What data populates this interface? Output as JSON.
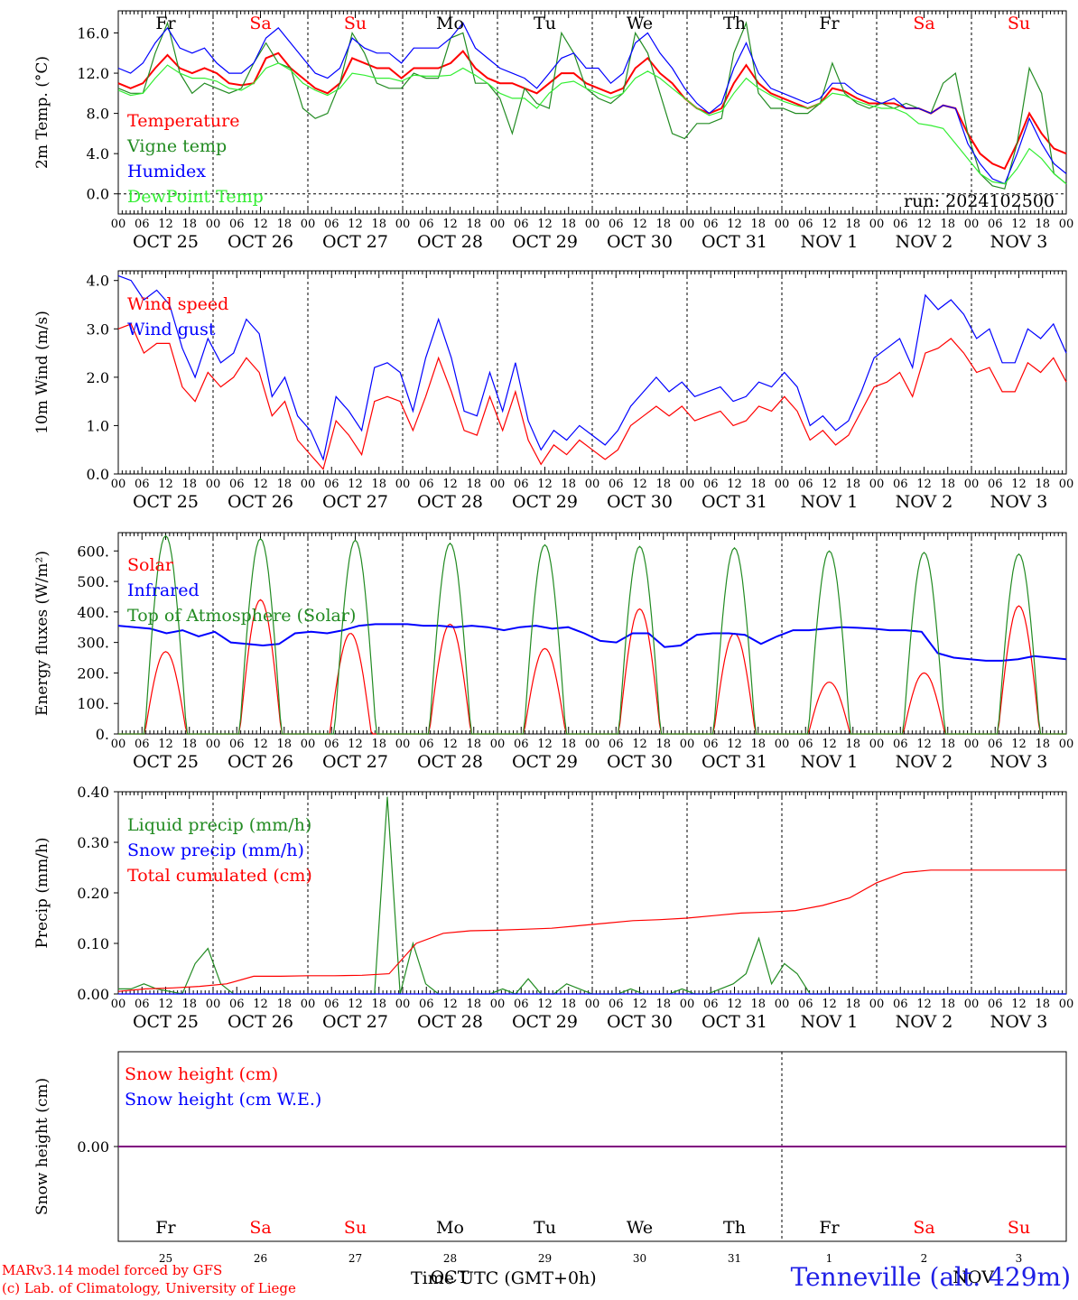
{
  "days": [
    "OCT 25",
    "OCT 26",
    "OCT 27",
    "OCT 28",
    "OCT 29",
    "OCT 30",
    "OCT 31",
    "NOV  1",
    "NOV  2",
    "NOV  3"
  ],
  "hour_labels": [
    "00",
    "06",
    "12",
    "18"
  ],
  "weekdays": [
    "Fr",
    "Sa",
    "Su",
    "Mo",
    "Tu",
    "We",
    "Th",
    "Fr",
    "Sa",
    "Su"
  ],
  "weekend_flags": [
    false,
    true,
    true,
    false,
    false,
    false,
    false,
    false,
    true,
    true
  ],
  "day_numbers": [
    "25",
    "26",
    "27",
    "28",
    "29",
    "30",
    "31",
    "1",
    "2",
    "3"
  ],
  "colors": {
    "red": "#ff0000",
    "green": "#228b22",
    "blue": "#0000ff",
    "lightgreen": "#33ee33",
    "purple": "#800080"
  },
  "footer": {
    "model": "MARv3.14 model forced by GFS",
    "lab": "(c) Lab. of Climatology, University of Liege",
    "xlabel": "Time UTC (GMT+0h)",
    "month_overlay": "OCT",
    "month_overlay2": "NOV",
    "station": "Tenneville (alt. 429m)"
  },
  "chart_data": [
    {
      "type": "line",
      "ylabel": "2m Temp. (°C)",
      "ylim": [
        -2,
        18.2
      ],
      "yticks": [
        "0.0",
        "4.0",
        "8.0",
        "12.0",
        "16.0"
      ],
      "ytick_values": [
        0,
        4,
        8,
        12,
        16
      ],
      "annotation": "run: 2024102500",
      "x_unit": "hours from 00 UTC OCT 25, 3-hourly",
      "series": [
        {
          "name": "Temperature",
          "color": "red",
          "values": [
            11,
            10.5,
            11,
            12.5,
            13.8,
            12.5,
            12,
            12.5,
            12,
            11,
            10.8,
            11,
            13.5,
            14,
            12.5,
            11.5,
            10.5,
            10,
            11,
            13.5,
            13,
            12.5,
            12.5,
            11.5,
            12.5,
            12.5,
            12.5,
            13,
            14.2,
            12.5,
            11.5,
            11,
            11,
            10.5,
            10,
            11,
            12,
            12,
            11,
            10.5,
            10,
            10.5,
            12.5,
            13.5,
            12,
            11,
            9.5,
            8.5,
            8,
            8.5,
            11,
            12.8,
            11,
            10,
            9.5,
            9,
            8.5,
            9,
            10.5,
            10.2,
            9.5,
            9,
            9,
            9,
            8.5,
            8.5,
            8,
            8.8,
            8.5,
            6,
            4,
            3,
            2.5,
            5,
            8,
            6,
            4.5,
            4
          ]
        },
        {
          "name": "Vigne temp",
          "color": "green",
          "values": [
            10.5,
            10,
            10,
            14,
            17,
            12,
            10,
            11,
            10.5,
            10,
            10.5,
            13,
            15,
            13,
            12.5,
            8.5,
            7.5,
            8,
            11,
            16,
            14,
            11,
            10.5,
            10.5,
            12,
            11.5,
            11.5,
            15.5,
            16,
            11,
            11,
            9.5,
            6,
            10.5,
            9,
            8.5,
            16,
            14,
            10.5,
            9.5,
            9,
            10,
            16,
            14,
            10,
            6,
            5.5,
            7,
            7,
            7.5,
            14,
            17,
            10,
            8.5,
            8.5,
            8,
            8,
            9,
            13,
            10,
            9,
            8.5,
            9,
            8.5,
            9,
            8.5,
            8,
            11,
            12,
            6,
            2,
            0.8,
            0.5,
            5,
            12.5,
            10,
            2,
            1
          ]
        },
        {
          "name": "Humidex",
          "color": "blue",
          "values": [
            12.5,
            12,
            13,
            15,
            16.5,
            14.5,
            14,
            14.5,
            13,
            12,
            12,
            13,
            15.5,
            16.5,
            15,
            13.5,
            12,
            11.5,
            12.5,
            15.5,
            14.5,
            14,
            14,
            13,
            14.5,
            14.5,
            14.5,
            15.5,
            17,
            14.5,
            13.5,
            12.5,
            12,
            11.5,
            10.5,
            12,
            13.5,
            14,
            12.5,
            12.5,
            11,
            12,
            15,
            16,
            14,
            12.5,
            10.5,
            9,
            8,
            9,
            12.5,
            15,
            12,
            10.5,
            10,
            9.5,
            9,
            9.5,
            11,
            11,
            10,
            9.5,
            9,
            9.5,
            8.5,
            8.5,
            8,
            8.8,
            8.5,
            5,
            3,
            1.5,
            1,
            4,
            7.5,
            5,
            3,
            2
          ]
        },
        {
          "name": "DewPoint Temp",
          "color": "lightgreen",
          "values": [
            10.3,
            9.8,
            10,
            11.5,
            12.8,
            12,
            11.5,
            11.5,
            11.2,
            10.5,
            10.3,
            11,
            12.5,
            13,
            12.3,
            11,
            10.3,
            9.8,
            10.5,
            12,
            11.8,
            11.5,
            11.5,
            11.2,
            11.8,
            11.7,
            11.7,
            11.8,
            12.5,
            11.8,
            11,
            10,
            9.5,
            9.5,
            8.5,
            10,
            11,
            11.2,
            10.5,
            10,
            9.5,
            10,
            11.5,
            12.2,
            11.5,
            10.5,
            9.5,
            8.5,
            7.8,
            8.2,
            10,
            11.5,
            10.5,
            9.8,
            9.2,
            8.8,
            8.5,
            9,
            10,
            9.8,
            9.2,
            8.8,
            8.5,
            8.5,
            8,
            7,
            6.8,
            6.5,
            5,
            3.5,
            2,
            1.2,
            1,
            2.5,
            4.5,
            3.5,
            2,
            1
          ]
        }
      ]
    },
    {
      "type": "line",
      "ylabel": "10m Wind (m/s)",
      "ylim": [
        0,
        4.2
      ],
      "yticks": [
        "0.0",
        "1.0",
        "2.0",
        "3.0",
        "4.0"
      ],
      "ytick_values": [
        0,
        1,
        2,
        3,
        4
      ],
      "series": [
        {
          "name": "Wind speed",
          "color": "red",
          "values": [
            3,
            3.1,
            2.5,
            2.7,
            2.7,
            1.8,
            1.5,
            2.1,
            1.8,
            2,
            2.4,
            2.1,
            1.2,
            1.5,
            0.7,
            0.4,
            0.1,
            1.1,
            0.8,
            0.4,
            1.5,
            1.6,
            1.5,
            0.9,
            1.6,
            2.4,
            1.7,
            0.9,
            0.8,
            1.6,
            0.9,
            1.7,
            0.7,
            0.2,
            0.6,
            0.4,
            0.7,
            0.5,
            0.3,
            0.5,
            1,
            1.2,
            1.4,
            1.2,
            1.4,
            1.1,
            1.2,
            1.3,
            1,
            1.1,
            1.4,
            1.3,
            1.6,
            1.3,
            0.7,
            0.9,
            0.6,
            0.8,
            1.3,
            1.8,
            1.9,
            2.1,
            1.6,
            2.5,
            2.6,
            2.8,
            2.5,
            2.1,
            2.2,
            1.7,
            1.7,
            2.3,
            2.1,
            2.4,
            1.9
          ]
        },
        {
          "name": "Wind gust",
          "color": "blue",
          "values": [
            4.1,
            4,
            3.6,
            3.8,
            3.5,
            2.6,
            2,
            2.8,
            2.3,
            2.5,
            3.2,
            2.9,
            1.6,
            2,
            1.2,
            0.9,
            0.3,
            1.6,
            1.3,
            0.9,
            2.2,
            2.3,
            2.1,
            1.3,
            2.4,
            3.2,
            2.4,
            1.3,
            1.2,
            2.1,
            1.3,
            2.3,
            1.1,
            0.5,
            0.9,
            0.7,
            1,
            0.8,
            0.6,
            0.9,
            1.4,
            1.7,
            2,
            1.7,
            1.9,
            1.6,
            1.7,
            1.8,
            1.5,
            1.6,
            1.9,
            1.8,
            2.1,
            1.8,
            1,
            1.2,
            0.9,
            1.1,
            1.7,
            2.4,
            2.6,
            2.8,
            2.2,
            3.7,
            3.4,
            3.6,
            3.3,
            2.8,
            3,
            2.3,
            2.3,
            3,
            2.8,
            3.1,
            2.5
          ]
        }
      ]
    },
    {
      "type": "line",
      "ylabel": "Energy fluxes (W/m²)",
      "ylim": [
        0,
        660
      ],
      "yticks": [
        "0.",
        "100.",
        "200.",
        "300.",
        "400.",
        "500.",
        "600."
      ],
      "ytick_values": [
        0,
        100,
        200,
        300,
        400,
        500,
        600
      ],
      "series": [
        {
          "name": "Solar",
          "color": "red",
          "peaks": [
            [
              0.5,
              270
            ],
            [
              1.5,
              440
            ],
            [
              2.45,
              330
            ],
            [
              3.5,
              360
            ],
            [
              4.5,
              280
            ],
            [
              5.5,
              410
            ],
            [
              6.5,
              330
            ],
            [
              7.5,
              170
            ],
            [
              8.5,
              200
            ],
            [
              9.5,
              420
            ]
          ]
        },
        {
          "name": "Infrared",
          "color": "blue",
          "values": [
            355,
            350,
            345,
            330,
            340,
            320,
            335,
            300,
            295,
            290,
            295,
            330,
            335,
            330,
            340,
            355,
            360,
            360,
            360,
            355,
            355,
            350,
            355,
            350,
            340,
            350,
            355,
            345,
            350,
            330,
            305,
            300,
            330,
            330,
            285,
            290,
            325,
            330,
            330,
            325,
            295,
            320,
            340,
            340,
            345,
            350,
            348,
            345,
            340,
            340,
            335,
            265,
            250,
            245,
            240,
            240,
            245,
            255,
            250,
            245
          ]
        },
        {
          "name": "Top of Atmosphere (Solar)",
          "color": "green",
          "peaks": [
            [
              0.5,
              650
            ],
            [
              1.5,
              640
            ],
            [
              2.5,
              635
            ],
            [
              3.5,
              625
            ],
            [
              4.5,
              620
            ],
            [
              5.5,
              615
            ],
            [
              6.5,
              610
            ],
            [
              7.5,
              600
            ],
            [
              8.5,
              595
            ],
            [
              9.5,
              590
            ]
          ]
        }
      ]
    },
    {
      "type": "line",
      "ylabel": "Precip (mm/h)",
      "ylim": [
        0,
        0.4
      ],
      "yticks": [
        "0.00",
        "0.10",
        "0.20",
        "0.30",
        "0.40"
      ],
      "ytick_values": [
        0,
        0.1,
        0.2,
        0.3,
        0.4
      ],
      "series": [
        {
          "name": "Liquid precip (mm/h)",
          "color": "green",
          "values": [
            0.01,
            0.01,
            0.02,
            0.01,
            0.005,
            0,
            0.06,
            0.09,
            0.02,
            0,
            0,
            0,
            0,
            0,
            0,
            0,
            0,
            0,
            0,
            0,
            0,
            0.39,
            0,
            0.1,
            0.02,
            0,
            0,
            0,
            0,
            0,
            0.01,
            0,
            0.03,
            0,
            0,
            0.02,
            0.01,
            0,
            0,
            0,
            0.01,
            0,
            0,
            0,
            0.01,
            0,
            0,
            0.01,
            0.02,
            0.04,
            0.11,
            0.02,
            0.06,
            0.04,
            0,
            0,
            0,
            0,
            0,
            0,
            0,
            0,
            0,
            0,
            0,
            0,
            0,
            0,
            0,
            0,
            0,
            0,
            0,
            0,
            0
          ]
        },
        {
          "name": "Snow precip (mm/h)",
          "color": "blue",
          "values": [
            0,
            0
          ]
        },
        {
          "name": "Total cumulated (cm)",
          "color": "red",
          "values": [
            0.005,
            0.01,
            0.012,
            0.015,
            0.02,
            0.035,
            0.035,
            0.036,
            0.036,
            0.037,
            0.04,
            0.1,
            0.12,
            0.125,
            0.126,
            0.128,
            0.13,
            0.135,
            0.14,
            0.145,
            0.147,
            0.15,
            0.155,
            0.16,
            0.162,
            0.165,
            0.175,
            0.19,
            0.22,
            0.24,
            0.245,
            0.245,
            0.245,
            0.245,
            0.245,
            0.245
          ]
        }
      ]
    },
    {
      "type": "line",
      "ylabel": "Snow height (cm)",
      "ylim": [
        -1,
        1
      ],
      "yticks": [
        "0.00"
      ],
      "ytick_values": [
        0
      ],
      "series": [
        {
          "name": "Snow height (cm)",
          "color": "red",
          "values": [
            0,
            0
          ]
        },
        {
          "name": "Snow height (cm W.E.)",
          "color": "blue",
          "values": [
            0,
            0
          ]
        }
      ]
    }
  ]
}
